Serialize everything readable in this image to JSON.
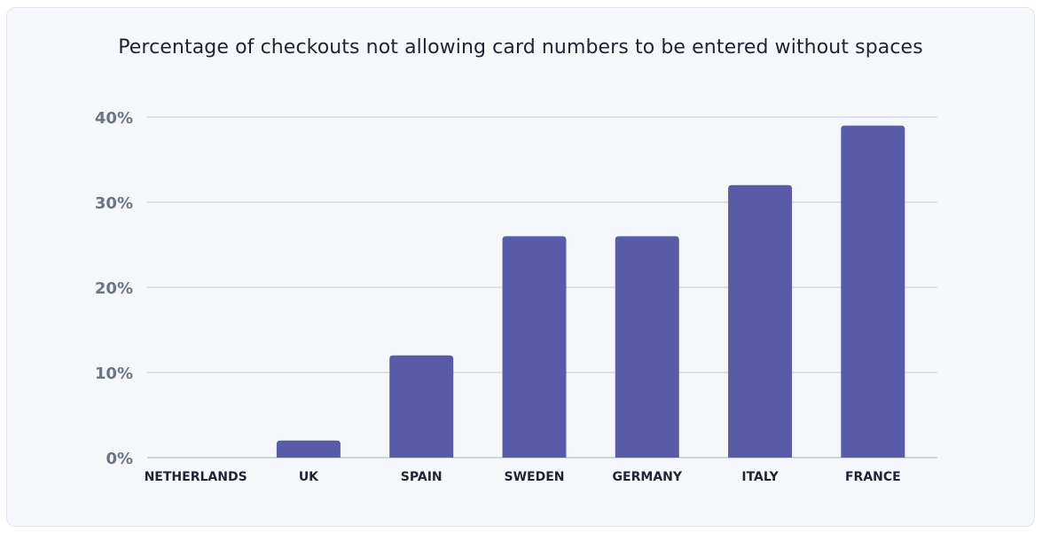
{
  "chart_data": {
    "type": "bar",
    "title": "Percentage of checkouts not allowing card numbers to be entered without spaces",
    "categories": [
      "NETHERLANDS",
      "UK",
      "SPAIN",
      "SWEDEN",
      "GERMANY",
      "ITALY",
      "FRANCE"
    ],
    "values": [
      0,
      2,
      12,
      26,
      26,
      32,
      39
    ],
    "y_unit": "%",
    "ylim": [
      0,
      40
    ],
    "yticks": [
      0,
      10,
      20,
      30,
      40
    ],
    "ytick_labels": [
      "0%",
      "10%",
      "20%",
      "30%",
      "40%"
    ],
    "grid": true,
    "bar_color": "#585ca8"
  }
}
